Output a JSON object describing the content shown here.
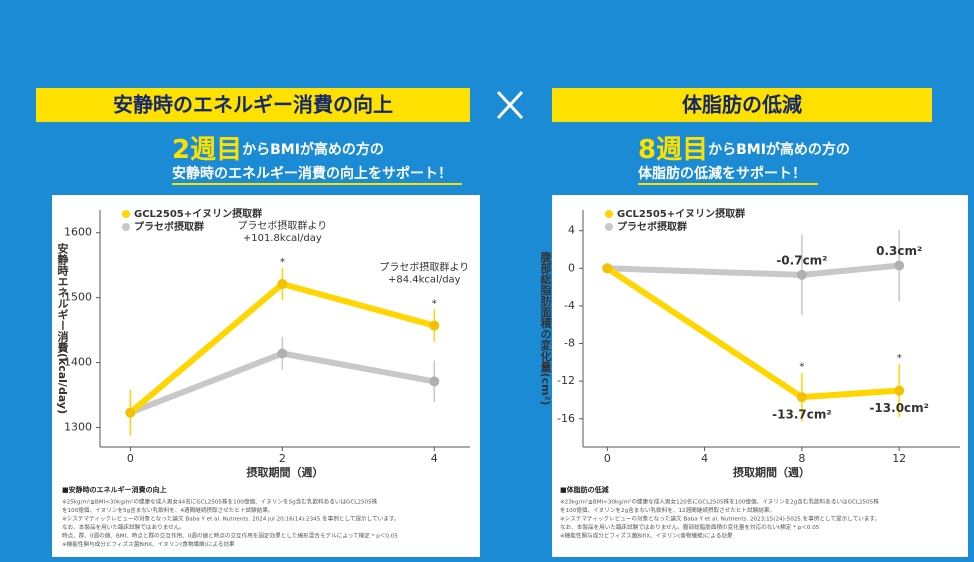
{
  "chart_data": [
    {
      "type": "line",
      "title": "安静時のエネルギー消費の向上",
      "headline": {
        "highlight": "2週目",
        "rest": "からBMIが高めの方の",
        "line2": "安静時のエネルギー消費の向上をサポート！"
      },
      "legend": "upper left",
      "x": [
        0,
        2,
        4
      ],
      "xlim": [
        -0.4,
        4.47
      ],
      "xticks": [
        0,
        2,
        4
      ],
      "ylim": [
        1270,
        1635
      ],
      "yticks": [
        1300,
        1400,
        1500,
        1600
      ],
      "xlabel": "摂取期間（週）",
      "ylabel": "安静時エネルギー消費(kcal/day)",
      "series": [
        {
          "name": "GCL2505+イヌリン摂取群",
          "color": "#ffd600",
          "values": [
            1323,
            1521,
            1457
          ],
          "errors": [
            35,
            25,
            25
          ]
        },
        {
          "name": "プラセボ摂取群",
          "color": "#c8c8c8",
          "values": [
            1323,
            1414,
            1371
          ],
          "errors": [
            35,
            25,
            32
          ]
        }
      ],
      "annotations": [
        {
          "x": 2,
          "text": [
            "プラセボ摂取群より",
            "+101.8kcal/day"
          ]
        },
        {
          "x": 4,
          "text": [
            "プラセボ摂取群より",
            "+84.4kcal/day"
          ]
        }
      ],
      "significance": [
        {
          "x": 2,
          "text": "*"
        },
        {
          "x": 4,
          "text": "*"
        }
      ],
      "footnote_title": "■安静時のエネルギー消費の向上",
      "footnotes": [
        "※25kg/m²≦BMI<30kg/m²の健康な成人男女44名にGCL2505株を100億個、イヌリンを5g含む乳飲料あるいはGCL2505株",
        "を100億個、イヌリンを5g含まない乳飲料を、4週間継続摂取させたヒト試験結果。",
        "※システマティックレビューの対象となった論文 Baba Y et al. Nutrients. 2024 Jul 20;16(14):2345.を事例として提示しています。",
        "なお、本製品を用いた臨床試験ではありません。",
        "時点、群、0週の値、BMI、時点と群の交互作用、0週の値と時点の交互作用を固定効果とした線形混合モデルによって検定 * p＜0.05",
        "※機能性関与成分ビフィズス菌BifiX、イヌリン(食物繊維)による効果"
      ]
    },
    {
      "type": "line",
      "title": "体脂肪の低減",
      "headline": {
        "highlight": "8週目",
        "rest": "からBMIが高めの方の",
        "line2": "体脂肪の低減をサポート！"
      },
      "legend": "upper left",
      "x": [
        0,
        8,
        12
      ],
      "xlim": [
        -1,
        14.5
      ],
      "xticks": [
        0,
        4,
        8,
        12
      ],
      "ylim": [
        -19,
        6.2
      ],
      "yticks": [
        4,
        0,
        -4,
        -8,
        -12,
        -16
      ],
      "xlabel": "摂取期間（週）",
      "ylabel": "腹部総脂肪面積の変化量(cm²)",
      "series": [
        {
          "name": "GCL2505+イヌリン摂取群",
          "color": "#ffd600",
          "values": [
            0,
            -13.7,
            -13.0
          ],
          "errors": [
            0,
            2.6,
            2.8
          ],
          "value_labels": [
            null,
            "-13.7cm²",
            "-13.0cm²"
          ]
        },
        {
          "name": "プラセボ摂取群",
          "color": "#c8c8c8",
          "values": [
            0,
            -0.7,
            0.3
          ],
          "errors": [
            0,
            4.3,
            3.8
          ],
          "value_labels": [
            null,
            "-0.7cm²",
            "0.3cm²"
          ]
        }
      ],
      "significance": [
        {
          "x": 8,
          "text": "*"
        },
        {
          "x": 12,
          "text": "*"
        }
      ],
      "footnote_title": "■体脂肪の低減",
      "footnotes": [
        "※23kg/m²≦BMI<30kg/m²の健康な成人男女120名にGCL2505株を100億個、イヌリンを2g含む乳飲料あるいはGCL2505株",
        "を100億個、イヌリンを2g含まない乳飲料を、12週間継続摂取させたヒト試験結果。",
        "※システマティックレビューの対象となった論文 Baba Y et al. Nutrients. 2023;15(24):5025.を事例として提示しています。",
        "なお、本製品を用いた臨床試験ではありません。腹部総脂肪面積の変化量を対応のないt検定 * p＜0.05",
        "※機能性関与成分ビフィズス菌BifiX、イヌリン(食物繊維)による効果"
      ]
    }
  ]
}
